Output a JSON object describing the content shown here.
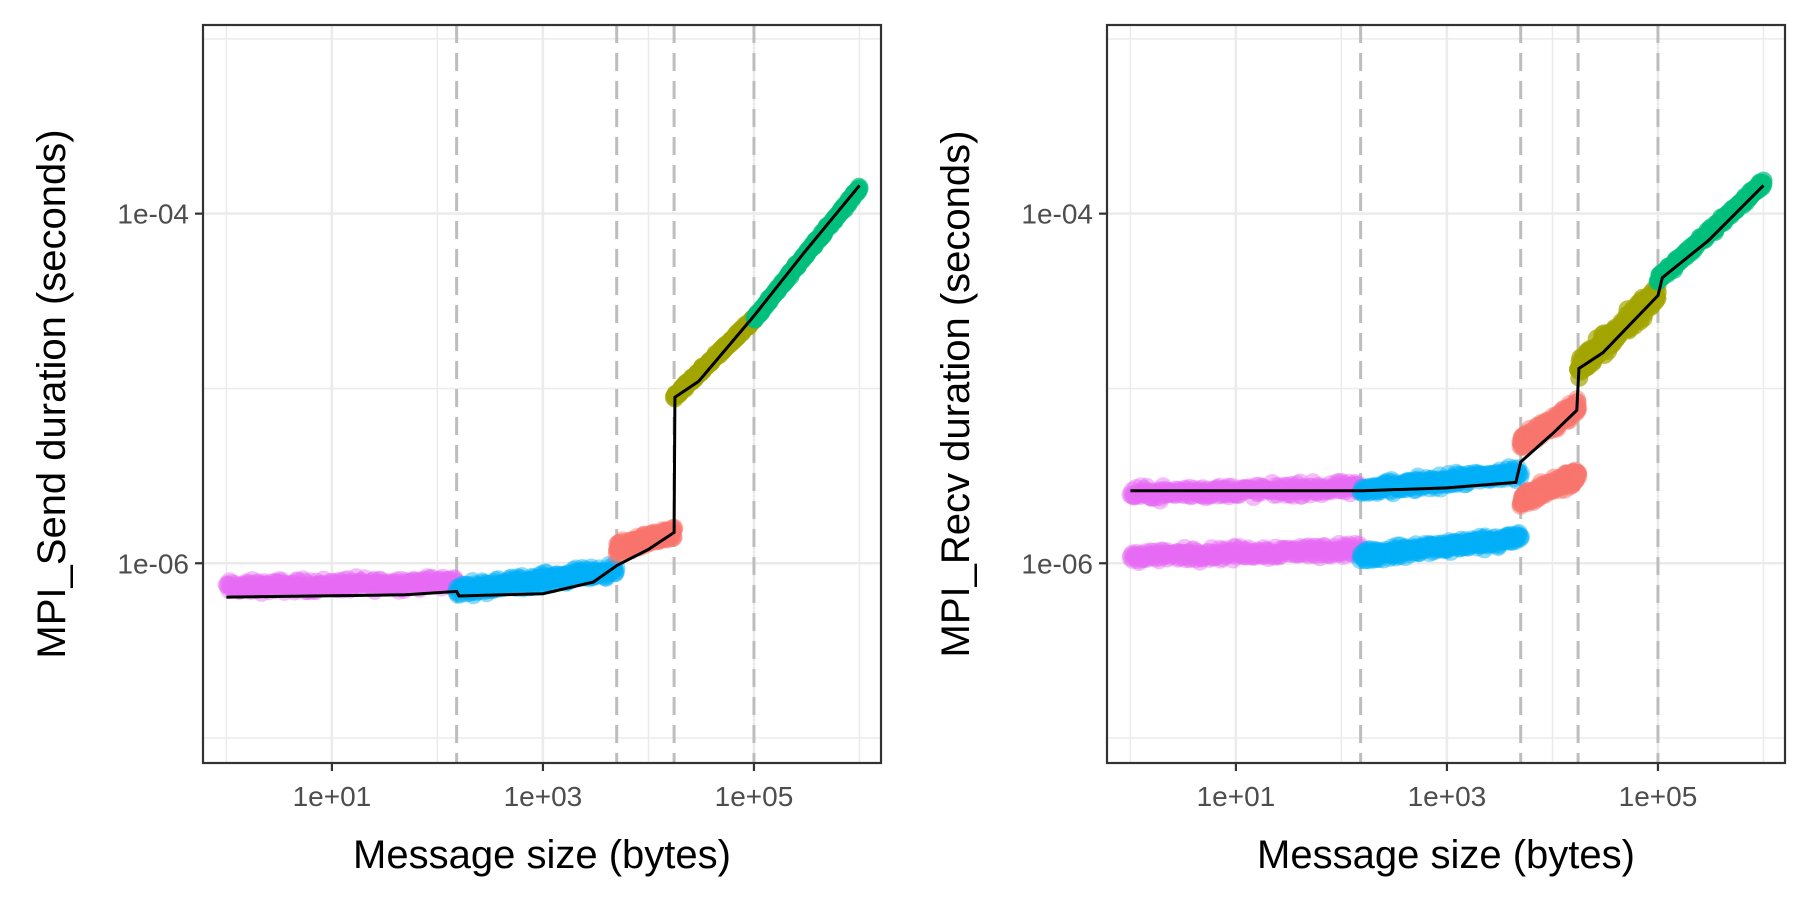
{
  "chart_data": [
    {
      "type": "scatter",
      "title": "",
      "xlabel": "Message size (bytes)",
      "ylabel": "MPI_Send duration (seconds)",
      "x_scale": "log10",
      "y_scale": "log10",
      "xlim": [
        0.6,
        1600000
      ],
      "ylim": [
        7.2e-08,
        0.0012
      ],
      "grid": true,
      "x_ticks": [
        {
          "value": 10,
          "label": "1e+01"
        },
        {
          "value": 1000,
          "label": "1e+03"
        },
        {
          "value": 100000,
          "label": "1e+05"
        }
      ],
      "y_ticks": [
        {
          "value": 1e-06,
          "label": "1e-06"
        },
        {
          "value": 0.0001,
          "label": "1e-04"
        }
      ],
      "breakpoints": [
        152,
        5000,
        17500,
        100000
      ],
      "series": [
        {
          "color": "#E76BF3",
          "x_range": [
            1,
            152
          ],
          "bands": [
            {
              "y0": 7.3e-07,
              "y1": 7.8e-07,
              "spread": 0.05
            }
          ],
          "opacity": 0.45
        },
        {
          "color": "#00B0F6",
          "x_range": [
            152,
            5000
          ],
          "bands": [
            {
              "y0": 7.05e-07,
              "y1": 9.1e-07,
              "spread": 0.05
            }
          ],
          "opacity": 0.45
        },
        {
          "color": "#F8766D",
          "x_range": [
            5000,
            17500
          ],
          "bands": [
            {
              "y0": 1.2e-06,
              "y1": 1.5e-06,
              "spread": 0.05
            }
          ],
          "opacity": 0.45
        },
        {
          "color": "#A3A500",
          "x_range": [
            17500,
            100000
          ],
          "bands": [
            {
              "y0": 8.9e-06,
              "y1": 2.5e-05,
              "spread": 0.02
            }
          ],
          "opacity": 0.7
        },
        {
          "color": "#00BF7D",
          "x_range": [
            100000,
            1000000
          ],
          "bands": [
            {
              "y0": 2.5e-05,
              "y1": 0.00014,
              "spread": 0.02
            }
          ],
          "opacity": 0.7
        }
      ],
      "fit_line": [
        [
          1,
          6.4e-07
        ],
        [
          50,
          6.6e-07
        ],
        [
          152,
          6.9e-07
        ],
        [
          160,
          6.5e-07
        ],
        [
          1000,
          6.7e-07
        ],
        [
          3000,
          7.8e-07
        ],
        [
          5000,
          9.7e-07
        ],
        [
          10000,
          1.2e-06
        ],
        [
          17500,
          1.5e-06
        ],
        [
          17800,
          8.9e-06
        ],
        [
          30000,
          1.1e-05
        ],
        [
          100000,
          2.6e-05
        ],
        [
          300000,
          6e-05
        ],
        [
          1000000,
          0.000145
        ]
      ],
      "fit_line_color": "#000000"
    },
    {
      "type": "scatter",
      "title": "",
      "xlabel": "Message size (bytes)",
      "ylabel": "MPI_Recv duration (seconds)",
      "x_scale": "log10",
      "y_scale": "log10",
      "xlim": [
        0.6,
        1600000
      ],
      "ylim": [
        7.2e-08,
        0.0012
      ],
      "grid": true,
      "x_ticks": [
        {
          "value": 10,
          "label": "1e+01"
        },
        {
          "value": 1000,
          "label": "1e+03"
        },
        {
          "value": 100000,
          "label": "1e+05"
        }
      ],
      "y_ticks": [
        {
          "value": 1e-06,
          "label": "1e-06"
        },
        {
          "value": 0.0001,
          "label": "1e-04"
        }
      ],
      "breakpoints": [
        152,
        5000,
        17500,
        100000
      ],
      "series": [
        {
          "color": "#E76BF3",
          "x_range": [
            1,
            152
          ],
          "bands": [
            {
              "y0": 2.5e-06,
              "y1": 2.7e-06,
              "spread": 0.05
            },
            {
              "y0": 1.1e-06,
              "y1": 1.2e-06,
              "spread": 0.05
            }
          ],
          "opacity": 0.45
        },
        {
          "color": "#00B0F6",
          "x_range": [
            152,
            5000
          ],
          "bands": [
            {
              "y0": 2.6e-06,
              "y1": 3.3e-06,
              "spread": 0.05
            },
            {
              "y0": 1.1e-06,
              "y1": 1.4e-06,
              "spread": 0.05
            }
          ],
          "opacity": 0.45
        },
        {
          "color": "#F8766D",
          "x_range": [
            5000,
            17500
          ],
          "bands": [
            {
              "y0": 4.9e-06,
              "y1": 7.8e-06,
              "spread": 0.06
            },
            {
              "y0": 2.3e-06,
              "y1": 3.2e-06,
              "spread": 0.06
            }
          ],
          "opacity": 0.5
        },
        {
          "color": "#A3A500",
          "x_range": [
            17500,
            100000
          ],
          "bands": [
            {
              "y0": 1.3e-05,
              "y1": 3.5e-05,
              "spread": 0.08
            }
          ],
          "opacity": 0.7
        },
        {
          "color": "#00BF7D",
          "x_range": [
            100000,
            1000000
          ],
          "bands": [
            {
              "y0": 4.2e-05,
              "y1": 0.00015,
              "spread": 0.03
            }
          ],
          "opacity": 0.7
        }
      ],
      "fit_line": [
        [
          1,
          2.6e-06
        ],
        [
          152,
          2.6e-06
        ],
        [
          160,
          2.6e-06
        ],
        [
          1000,
          2.7e-06
        ],
        [
          4500,
          2.9e-06
        ],
        [
          5000,
          3.8e-06
        ],
        [
          10000,
          5.5e-06
        ],
        [
          17000,
          7.5e-06
        ],
        [
          17800,
          1.3e-05
        ],
        [
          30000,
          1.6e-05
        ],
        [
          100000,
          3.4e-05
        ],
        [
          110000,
          4.3e-05
        ],
        [
          300000,
          7e-05
        ],
        [
          1000000,
          0.000145
        ]
      ],
      "fit_line_color": "#000000"
    }
  ]
}
